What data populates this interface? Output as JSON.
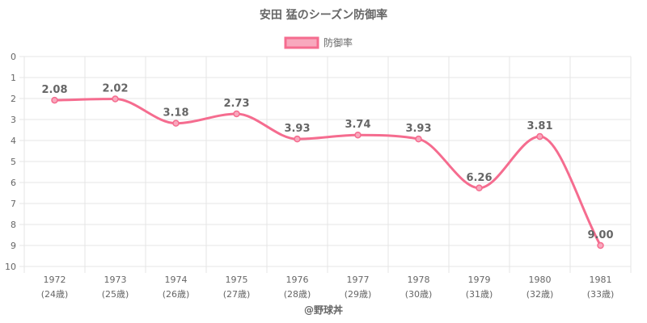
{
  "chart_data": {
    "type": "line",
    "title": "安田 猛のシーズン防御率",
    "legend": {
      "position": "top",
      "labels": [
        "防御率"
      ]
    },
    "x": [
      "1972",
      "1973",
      "1974",
      "1975",
      "1976",
      "1977",
      "1978",
      "1979",
      "1980",
      "1981"
    ],
    "x_sublabels": [
      "(24歳)",
      "(25歳)",
      "(26歳)",
      "(27歳)",
      "(28歳)",
      "(29歳)",
      "(30歳)",
      "(31歳)",
      "(32歳)",
      "(33歳)"
    ],
    "series": [
      {
        "name": "防御率",
        "values": [
          2.08,
          2.02,
          3.18,
          2.73,
          3.93,
          3.74,
          3.93,
          6.26,
          3.81,
          9.0
        ],
        "labels": [
          "2.08",
          "2.02",
          "3.18",
          "2.73",
          "3.93",
          "3.74",
          "3.93",
          "6.26",
          "3.81",
          "9.00"
        ],
        "color": "#f56c8f"
      }
    ],
    "yticks": [
      "0",
      "1",
      "2",
      "3",
      "4",
      "5",
      "6",
      "7",
      "8",
      "9",
      "10"
    ],
    "ylim": [
      0,
      10
    ],
    "y_reversed": true,
    "grid": true,
    "credit": "@野球丼"
  }
}
